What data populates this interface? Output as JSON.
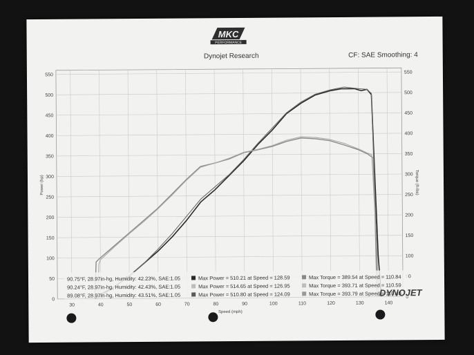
{
  "header": {
    "logo_text": "MKC",
    "logo_subtext": "PERFORMANCE",
    "title": "Dynojet Research",
    "cf_info": "CF: SAE Smoothing: 4"
  },
  "footer_logo": "DYNOJET",
  "colors": {
    "power_dark": "#2a2a2a",
    "torque_gray": "#8a8a8a",
    "grid": "#c9c9c9",
    "paper": "#f2f2f0"
  },
  "legend": [
    {
      "conditions": "90.75°F, 28.97in-hg, Humidity: 42.23%, SAE:1.05",
      "power": "Max Power = 510.21 at Speed = 128.59",
      "torque": "Max Torque = 389.54 at Speed = 110.84"
    },
    {
      "conditions": "90.24°F, 28.97in-hg, Humidity: 42.43%, SAE:1.05",
      "power": "Max Power = 514.65 at Speed = 126.95",
      "torque": "Max Torque = 393.71 at Speed = 110.59"
    },
    {
      "conditions": "89.08°F, 28.97in-hg, Humidity: 43.51%, SAE:1.05",
      "power": "Max Power = 510.80 at Speed = 124.09",
      "torque": "Max Torque = 393.79 at Speed = 110.49"
    }
  ],
  "chart_data": {
    "type": "line",
    "xlabel": "Speed (mph)",
    "ylabel_left": "Power (hp)",
    "ylabel_right": "Torque (ft-lbs)",
    "xlim": [
      25,
      145
    ],
    "ylim": [
      0,
      560
    ],
    "x_ticks": [
      30,
      40,
      50,
      60,
      70,
      80,
      90,
      100,
      110,
      120,
      130,
      140
    ],
    "y_ticks": [
      0,
      50,
      100,
      150,
      200,
      250,
      300,
      350,
      400,
      450,
      500,
      550
    ],
    "grid": true,
    "series": [
      {
        "x": [
          38,
          40,
          45,
          50,
          55,
          60,
          65,
          70,
          75,
          80,
          85,
          90,
          95,
          100,
          105,
          110,
          115,
          120,
          124,
          128.6,
          131,
          133,
          134.5,
          135.5,
          136.5,
          137.5
        ],
        "y": [
          0,
          10,
          30,
          55,
          85,
          115,
          150,
          190,
          235,
          265,
          300,
          335,
          375,
          410,
          450,
          475,
          495,
          505,
          510,
          510,
          505,
          508,
          495,
          300,
          100,
          0
        ]
      },
      {
        "x": [
          38,
          40,
          42,
          45,
          50,
          55,
          60,
          65,
          70,
          75,
          80,
          85,
          90,
          95,
          100,
          105,
          110,
          115,
          120,
          125,
          130,
          133,
          134.5,
          135.5,
          136.5
        ],
        "y": [
          0,
          5,
          15,
          30,
          55,
          85,
          120,
          158,
          200,
          242,
          272,
          302,
          338,
          378,
          415,
          452,
          478,
          497,
          507,
          514,
          510,
          508,
          498,
          250,
          0
        ]
      },
      {
        "x": [
          38,
          38.5,
          40,
          45,
          50,
          55,
          60,
          65,
          70,
          75,
          80,
          85,
          90,
          95,
          100,
          105,
          110,
          115,
          120,
          125,
          130,
          133,
          134,
          135,
          135.5,
          136
        ],
        "y": [
          0,
          90,
          100,
          130,
          160,
          190,
          220,
          255,
          290,
          322,
          330,
          340,
          355,
          362,
          370,
          382,
          390,
          388,
          383,
          372,
          360,
          350,
          345,
          340,
          200,
          0
        ]
      },
      {
        "x": [
          39,
          39.5,
          40,
          45,
          50,
          55,
          60,
          65,
          70,
          75,
          80,
          85,
          90,
          95,
          100,
          105,
          110,
          115,
          120,
          125,
          130,
          133,
          134.5,
          135.5,
          136.5
        ],
        "y": [
          0,
          85,
          95,
          127,
          158,
          187,
          218,
          252,
          288,
          320,
          330,
          342,
          356,
          363,
          372,
          385,
          393,
          391,
          386,
          376,
          362,
          352,
          348,
          200,
          0
        ]
      }
    ]
  }
}
